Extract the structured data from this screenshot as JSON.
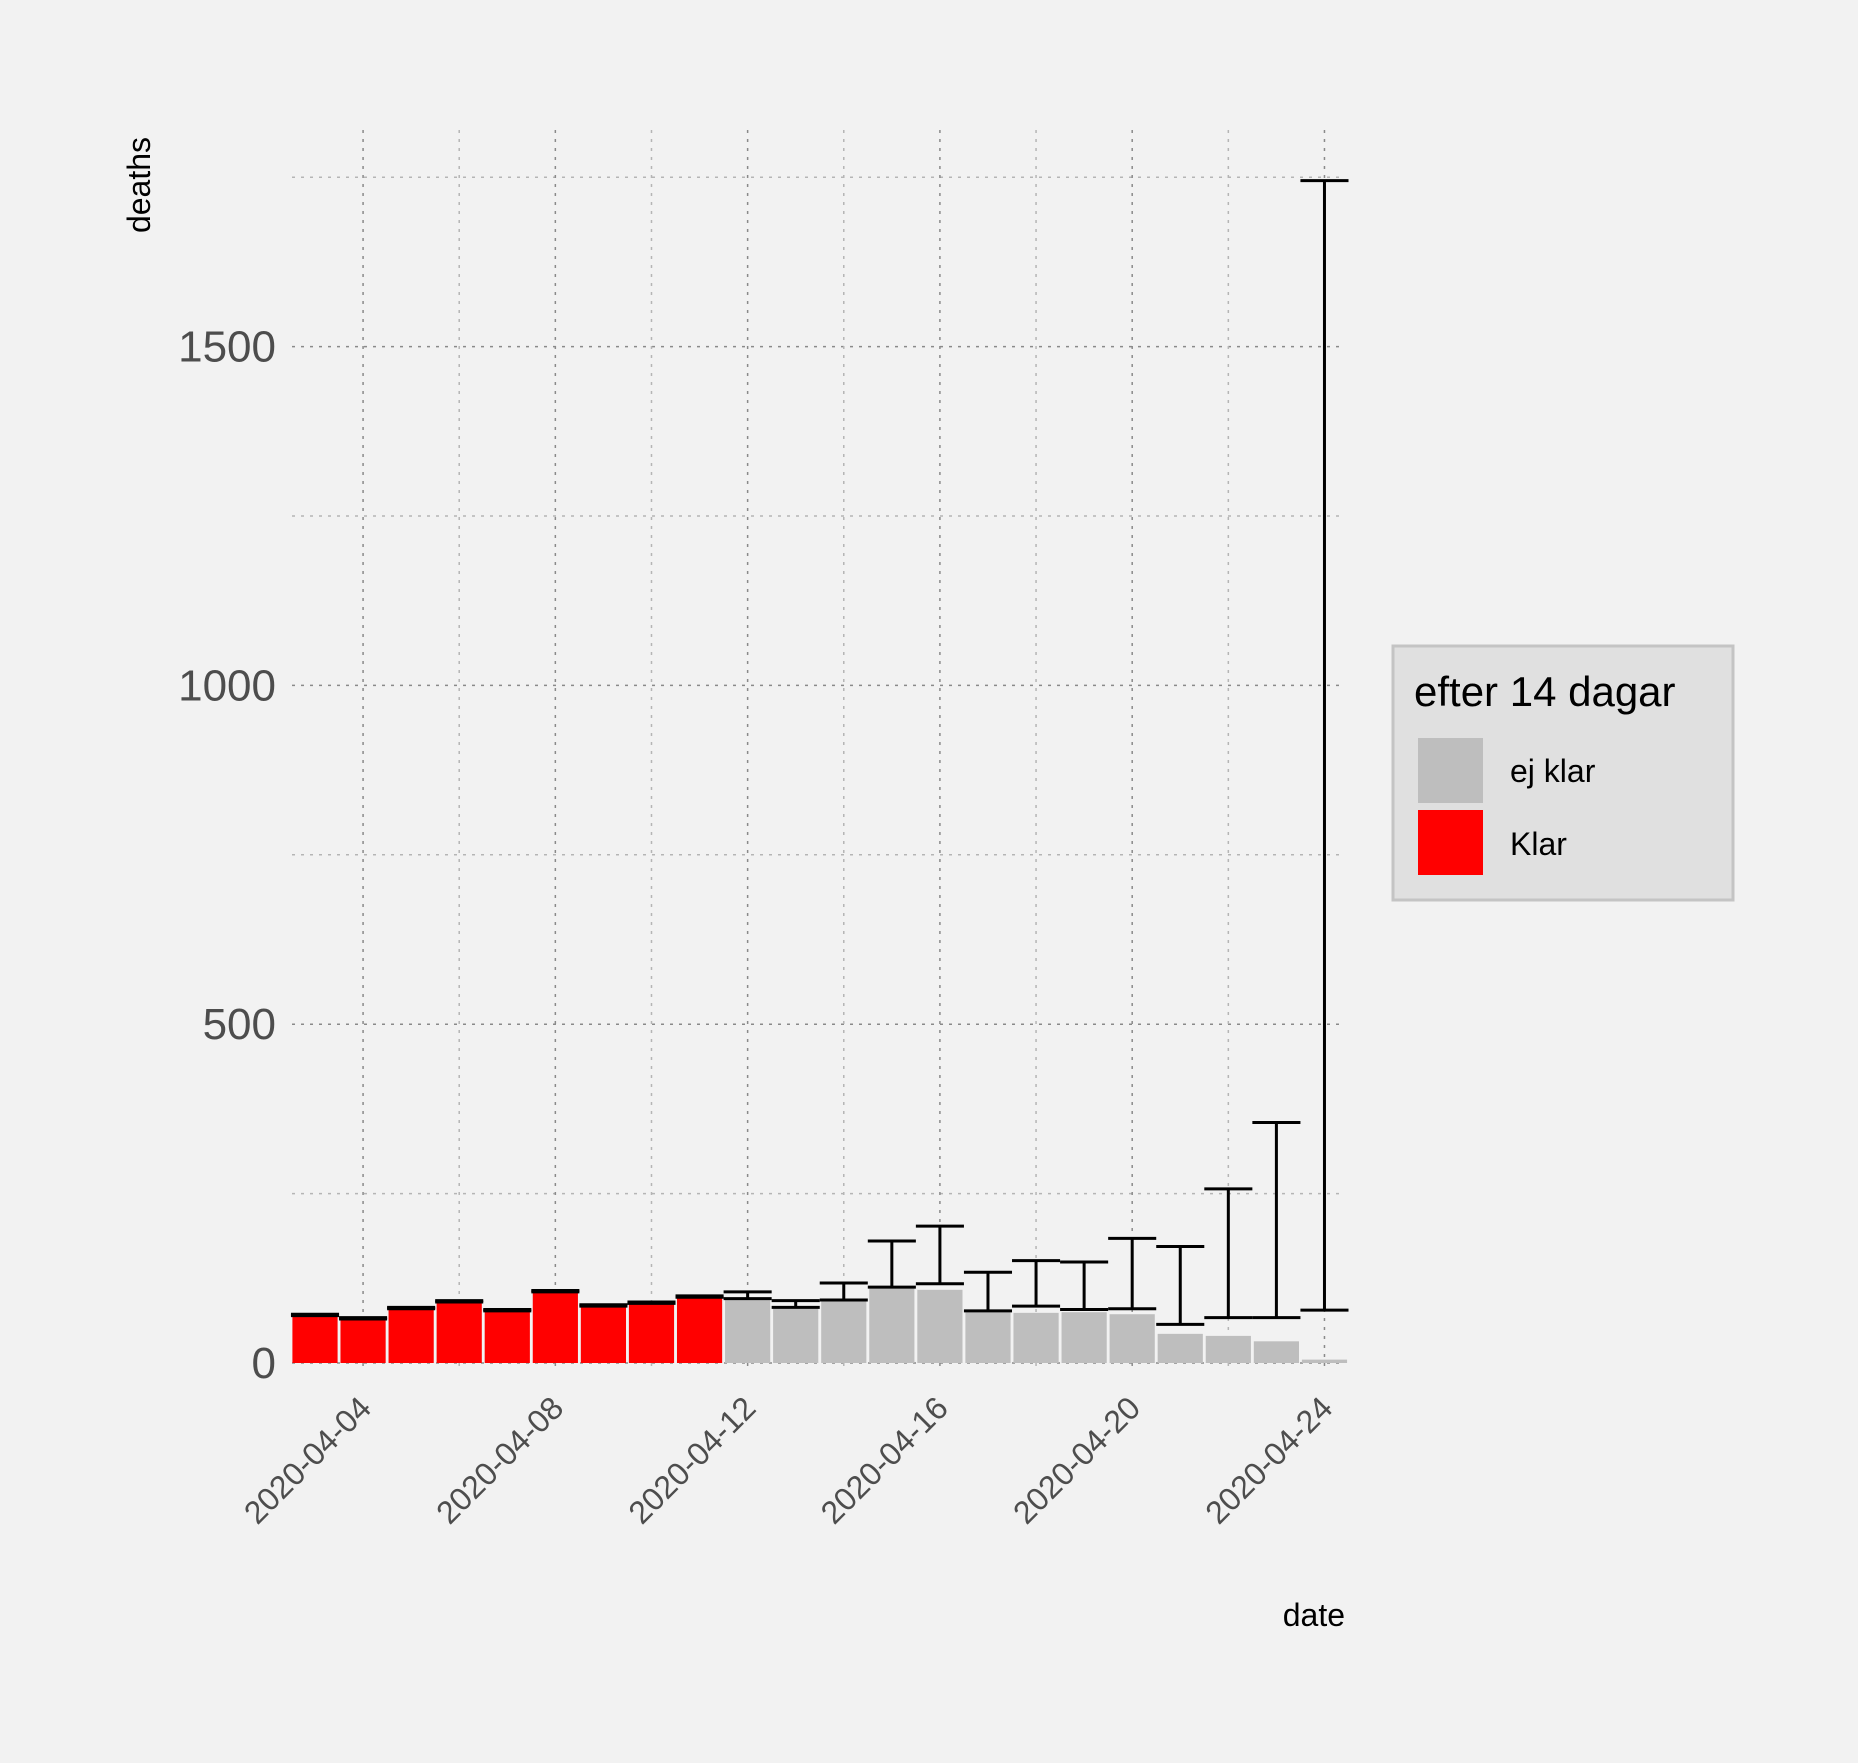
{
  "chart_data": {
    "type": "bar",
    "xlabel": "date",
    "ylabel": "deaths",
    "ylim": [
      -50,
      1800
    ],
    "y_ticks": [
      0,
      500,
      1000,
      1500
    ],
    "x_tick_labels": [
      "2020-04-04",
      "2020-04-08",
      "2020-04-12",
      "2020-04-16",
      "2020-04-20",
      "2020-04-24"
    ],
    "grid": true,
    "legend": {
      "title": "efter 14 dagar",
      "placement": "right",
      "entries": [
        {
          "label": "ej klar",
          "color": "#bebebe"
        },
        {
          "label": "Klar",
          "color": "#ff0000"
        }
      ]
    },
    "colors": {
      "klar": "#ff0000",
      "ej_klar": "#bebebe",
      "errorbar": "#000000"
    },
    "bars": [
      {
        "date": "2020-04-03",
        "value": 70,
        "status": "Klar",
        "lower": 70,
        "upper": 72
      },
      {
        "date": "2020-04-04",
        "value": 65,
        "status": "Klar",
        "lower": 65,
        "upper": 67
      },
      {
        "date": "2020-04-05",
        "value": 80,
        "status": "Klar",
        "lower": 80,
        "upper": 82
      },
      {
        "date": "2020-04-06",
        "value": 90,
        "status": "Klar",
        "lower": 90,
        "upper": 92
      },
      {
        "date": "2020-04-07",
        "value": 77,
        "status": "Klar",
        "lower": 77,
        "upper": 79
      },
      {
        "date": "2020-04-08",
        "value": 105,
        "status": "Klar",
        "lower": 105,
        "upper": 107
      },
      {
        "date": "2020-04-09",
        "value": 84,
        "status": "Klar",
        "lower": 84,
        "upper": 86
      },
      {
        "date": "2020-04-10",
        "value": 88,
        "status": "Klar",
        "lower": 88,
        "upper": 90
      },
      {
        "date": "2020-04-11",
        "value": 97,
        "status": "Klar",
        "lower": 97,
        "upper": 99
      },
      {
        "date": "2020-04-12",
        "value": 95,
        "status": "ej klar",
        "lower": 95,
        "upper": 105
      },
      {
        "date": "2020-04-13",
        "value": 80,
        "status": "ej klar",
        "lower": 82,
        "upper": 92
      },
      {
        "date": "2020-04-14",
        "value": 92,
        "status": "ej klar",
        "lower": 93,
        "upper": 118
      },
      {
        "date": "2020-04-15",
        "value": 110,
        "status": "ej klar",
        "lower": 112,
        "upper": 180
      },
      {
        "date": "2020-04-16",
        "value": 108,
        "status": "ej klar",
        "lower": 117,
        "upper": 202
      },
      {
        "date": "2020-04-17",
        "value": 75,
        "status": "ej klar",
        "lower": 77,
        "upper": 134
      },
      {
        "date": "2020-04-18",
        "value": 74,
        "status": "ej klar",
        "lower": 84,
        "upper": 151
      },
      {
        "date": "2020-04-19",
        "value": 75,
        "status": "ej klar",
        "lower": 79,
        "upper": 149
      },
      {
        "date": "2020-04-20",
        "value": 72,
        "status": "ej klar",
        "lower": 80,
        "upper": 184
      },
      {
        "date": "2020-04-21",
        "value": 43,
        "status": "ej klar",
        "lower": 57,
        "upper": 172
      },
      {
        "date": "2020-04-22",
        "value": 40,
        "status": "ej klar",
        "lower": 67,
        "upper": 257
      },
      {
        "date": "2020-04-23",
        "value": 32,
        "status": "ej klar",
        "lower": 67,
        "upper": 355
      },
      {
        "date": "2020-04-24",
        "value": 5,
        "status": "ej klar",
        "lower": 78,
        "upper": 1745
      }
    ]
  }
}
